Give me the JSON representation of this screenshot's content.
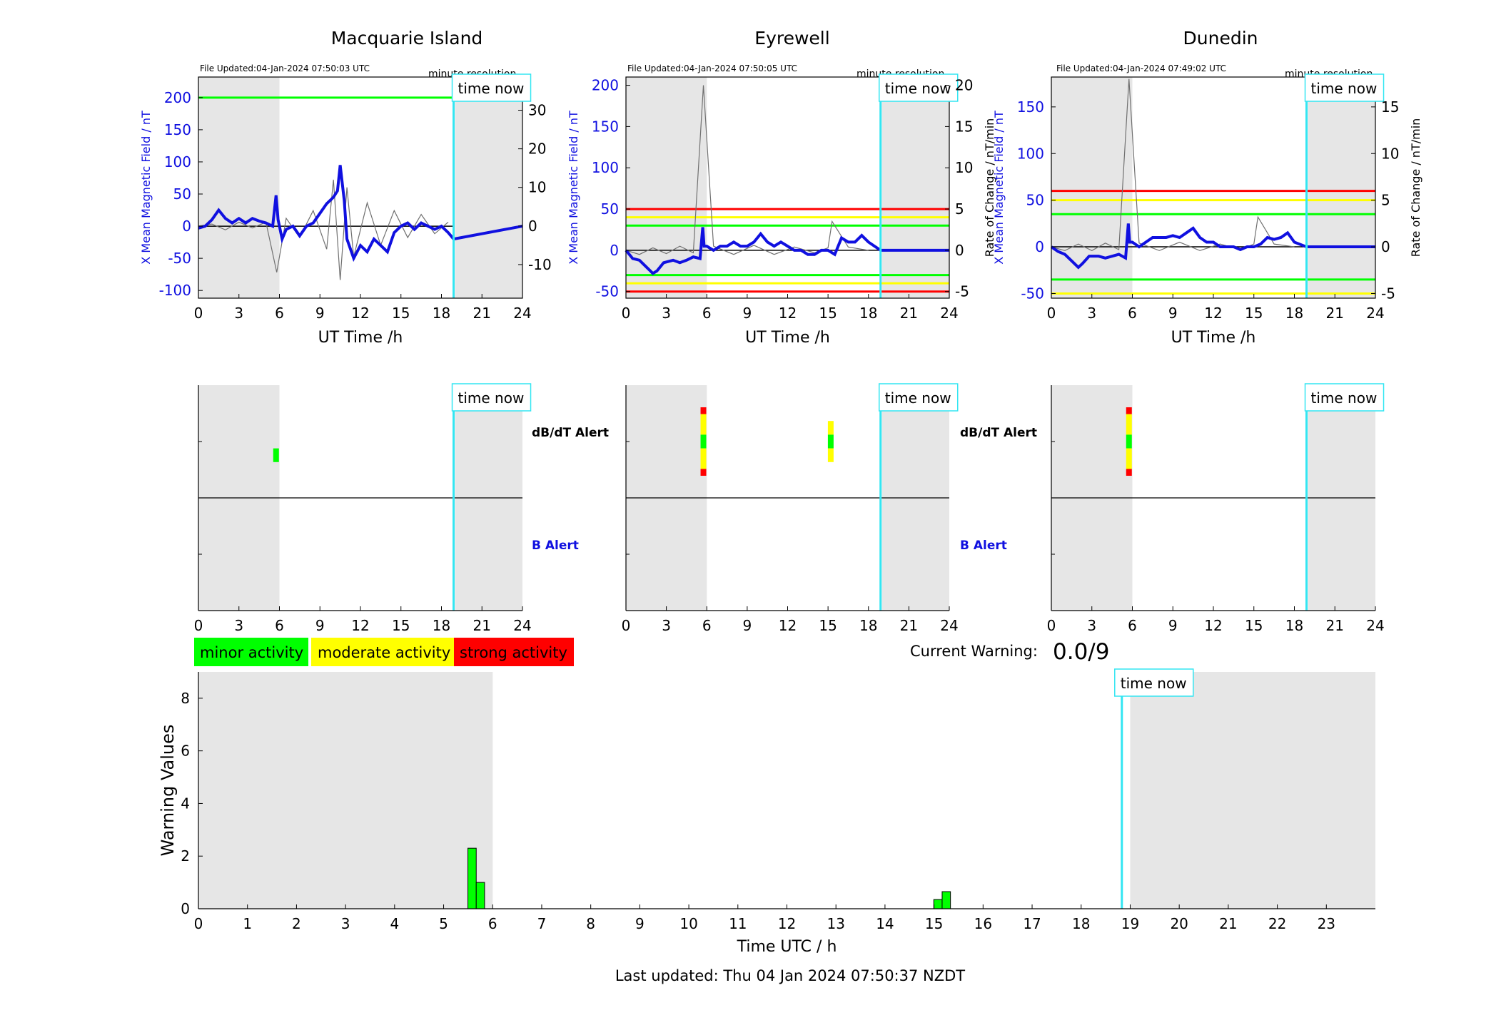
{
  "colors": {
    "night_shade": "#e6e6e6",
    "field_trace": "#1010e0",
    "rate_trace": "#707070",
    "time_now": "#33e6f2",
    "minor": "#00ff00",
    "moderate": "#ffff00",
    "strong": "#ff0000",
    "b_alert_label": "#1010e0",
    "axis": "#000000"
  },
  "panels": [
    {
      "title": "Macquarie Island",
      "file_updated": "File Updated:04-Jan-2024 07:50:03 UTC",
      "resolution": "minute resolution",
      "time_now_label": "time now"
    },
    {
      "title": "Eyrewell",
      "file_updated": "File Updated:04-Jan-2024 07:50:05 UTC",
      "resolution": "minute resolution",
      "time_now_label": "time now"
    },
    {
      "title": "Dunedin",
      "file_updated": "File Updated:04-Jan-2024 07:49:02 UTC",
      "resolution": "minute resolution",
      "time_now_label": "time now"
    }
  ],
  "alert_labels": {
    "dbdt": "dB/dT Alert",
    "b": "B Alert"
  },
  "legend": {
    "minor": "minor activity",
    "moderate": "moderate activity",
    "strong": "strong activity"
  },
  "current_warning": {
    "label": "Current Warning:",
    "value": "0.0/9"
  },
  "footer": "Last updated: Thu 04 Jan 2024 07:50:37 NZDT",
  "chart_data": [
    {
      "type": "line",
      "station": "Macquarie Island",
      "xlabel": "UT Time /h",
      "ylabel_left": "X Mean Magnetic Field / nT",
      "ylabel_right": "",
      "x_ticks": [
        0,
        3,
        6,
        9,
        12,
        15,
        18,
        21,
        24
      ],
      "y_ticks_left": [
        -100,
        -50,
        0,
        50,
        100,
        150,
        200
      ],
      "y_ticks_right": [
        -10,
        0,
        10,
        20,
        30
      ],
      "xlim": [
        0,
        24
      ],
      "ylim_left": [
        -112,
        232
      ],
      "ylim_right": [
        -18.7,
        38.6
      ],
      "night_shade_h": [
        [
          0,
          6
        ],
        [
          19,
          24
        ]
      ],
      "time_now_h": 18.9,
      "threshold_lines": [
        {
          "level": 200,
          "color": "#00ff00"
        }
      ],
      "series": [
        {
          "name": "X Mean Magnetic Field",
          "axis": "left",
          "x": [
            0,
            0.5,
            1,
            1.5,
            2,
            2.5,
            3,
            3.5,
            4,
            4.5,
            5,
            5.5,
            5.75,
            5.9,
            6.2,
            6.5,
            7,
            7.5,
            8,
            8.5,
            9,
            9.5,
            10,
            10.3,
            10.5,
            10.8,
            11,
            11.5,
            12,
            12.5,
            13,
            13.5,
            14,
            14.5,
            15,
            15.5,
            16,
            16.5,
            17,
            17.5,
            18,
            18.5,
            18.9,
            24
          ],
          "y": [
            -3,
            0,
            10,
            25,
            12,
            5,
            12,
            5,
            12,
            8,
            5,
            0,
            48,
            10,
            -20,
            -5,
            0,
            -15,
            0,
            5,
            20,
            35,
            45,
            55,
            95,
            40,
            -20,
            -50,
            -30,
            -40,
            -20,
            -30,
            -40,
            -10,
            0,
            5,
            -5,
            5,
            0,
            -5,
            0,
            -10,
            -20,
            0
          ]
        },
        {
          "name": "Rate of Change",
          "axis": "right",
          "x": [
            0,
            1,
            2,
            3,
            4,
            5,
            5.8,
            6.5,
            7.5,
            8.5,
            9.5,
            10,
            10.5,
            11,
            11.5,
            12.5,
            13.5,
            14.5,
            15.5,
            16.5,
            17.5,
            18.5
          ],
          "y": [
            0,
            0.5,
            -1,
            1,
            -0.5,
            1,
            -12,
            2,
            -3,
            4,
            -6,
            12,
            -14,
            10,
            -8,
            6,
            -5,
            4,
            -3,
            3,
            -2,
            1
          ]
        }
      ]
    },
    {
      "type": "line",
      "station": "Eyrewell",
      "xlabel": "UT Time /h",
      "ylabel_left": "X Mean Magnetic Field / nT",
      "ylabel_right": "Rate of Change / nT/min",
      "x_ticks": [
        0,
        3,
        6,
        9,
        12,
        15,
        18,
        21,
        24
      ],
      "y_ticks_left": [
        -50,
        0,
        50,
        100,
        150,
        200
      ],
      "y_ticks_right": [
        -5,
        0,
        5,
        10,
        15,
        20
      ],
      "xlim": [
        0,
        24
      ],
      "ylim_left": [
        -58,
        210
      ],
      "ylim_right": [
        -5.8,
        21
      ],
      "night_shade_h": [
        [
          0,
          6
        ],
        [
          19,
          24
        ]
      ],
      "time_now_h": 18.9,
      "threshold_lines": [
        {
          "level": 50,
          "color": "#ff0000"
        },
        {
          "level": 40,
          "color": "#ffff00"
        },
        {
          "level": 30,
          "color": "#00ff00"
        },
        {
          "level": -30,
          "color": "#00ff00"
        },
        {
          "level": -40,
          "color": "#ffff00"
        },
        {
          "level": -50,
          "color": "#ff0000"
        }
      ],
      "series": [
        {
          "name": "X Mean Magnetic Field",
          "axis": "left",
          "x": [
            0,
            0.5,
            1,
            1.5,
            2,
            2.3,
            2.8,
            3.5,
            4,
            4.5,
            5,
            5.5,
            5.7,
            5.8,
            6,
            6.5,
            7,
            7.5,
            8,
            8.5,
            9,
            9.5,
            10,
            10.5,
            11,
            11.5,
            12,
            12.5,
            13,
            13.5,
            14,
            14.5,
            15,
            15.5,
            16,
            16.5,
            17,
            17.5,
            18,
            18.9,
            24
          ],
          "y": [
            0,
            -10,
            -12,
            -20,
            -28,
            -25,
            -15,
            -12,
            -15,
            -12,
            -8,
            -10,
            28,
            5,
            5,
            0,
            5,
            5,
            10,
            5,
            5,
            10,
            20,
            10,
            5,
            10,
            5,
            0,
            0,
            -5,
            -5,
            0,
            0,
            -5,
            15,
            10,
            10,
            18,
            10,
            0,
            0
          ]
        },
        {
          "name": "Rate of Change",
          "axis": "right",
          "x": [
            0,
            1,
            2,
            3,
            4,
            5,
            5.75,
            6.5,
            8,
            9.5,
            11,
            12.5,
            14,
            15,
            15.3,
            16.5,
            18
          ],
          "y": [
            0,
            -0.5,
            0.3,
            -0.4,
            0.5,
            -0.3,
            20,
            0.5,
            -0.5,
            0.6,
            -0.5,
            0.4,
            -0.3,
            0.3,
            3.5,
            0.4,
            0
          ]
        }
      ]
    },
    {
      "type": "line",
      "station": "Dunedin",
      "xlabel": "UT Time /h",
      "ylabel_left": "X Mean Magnetic Field / nT",
      "ylabel_right": "Rate of Change / nT/min",
      "x_ticks": [
        0,
        3,
        6,
        9,
        12,
        15,
        18,
        21,
        24
      ],
      "y_ticks_left": [
        -50,
        0,
        50,
        100,
        150
      ],
      "y_ticks_right": [
        -5,
        0,
        5,
        10,
        15
      ],
      "xlim": [
        0,
        24
      ],
      "ylim_left": [
        -55,
        182
      ],
      "ylim_right": [
        -5.5,
        18.2
      ],
      "night_shade_h": [
        [
          0,
          6
        ],
        [
          19,
          24
        ]
      ],
      "time_now_h": 18.9,
      "threshold_lines": [
        {
          "level": 60,
          "color": "#ff0000"
        },
        {
          "level": 50,
          "color": "#ffff00"
        },
        {
          "level": 35,
          "color": "#00ff00"
        },
        {
          "level": -35,
          "color": "#00ff00"
        },
        {
          "level": -50,
          "color": "#ffff00"
        }
      ],
      "series": [
        {
          "name": "X Mean Magnetic Field",
          "axis": "left",
          "x": [
            0,
            0.5,
            1,
            1.5,
            2,
            2.3,
            2.8,
            3.5,
            4,
            4.5,
            5,
            5.5,
            5.7,
            5.8,
            6,
            6.5,
            7,
            7.5,
            8,
            8.5,
            9,
            9.5,
            10,
            10.5,
            11,
            11.5,
            12,
            12.5,
            13,
            13.5,
            14,
            14.5,
            15,
            15.5,
            16,
            16.5,
            17,
            17.5,
            18,
            18.9,
            24
          ],
          "y": [
            0,
            -5,
            -8,
            -15,
            -22,
            -18,
            -10,
            -10,
            -12,
            -10,
            -8,
            -12,
            25,
            5,
            5,
            0,
            5,
            10,
            10,
            10,
            12,
            10,
            15,
            20,
            10,
            5,
            5,
            0,
            0,
            0,
            -3,
            0,
            0,
            3,
            10,
            8,
            10,
            15,
            5,
            0,
            0
          ]
        },
        {
          "name": "Rate of Change",
          "axis": "right",
          "x": [
            0,
            1,
            2,
            3,
            4,
            5,
            5.75,
            6.5,
            8,
            9.5,
            11,
            12.5,
            14,
            15,
            15.3,
            16.5,
            18
          ],
          "y": [
            0,
            -0.4,
            0.3,
            -0.4,
            0.4,
            -0.3,
            18,
            0.4,
            -0.4,
            0.5,
            -0.4,
            0.3,
            -0.3,
            0.3,
            3.2,
            0.3,
            0
          ]
        }
      ]
    },
    {
      "type": "bar",
      "title": "",
      "xlabel": "Time UTC / h",
      "ylabel": "Warning Values",
      "xlim": [
        0,
        24
      ],
      "ylim": [
        0,
        9
      ],
      "x_ticks": [
        0,
        1,
        2,
        3,
        4,
        5,
        6,
        7,
        8,
        9,
        10,
        11,
        12,
        13,
        14,
        15,
        16,
        17,
        18,
        19,
        20,
        21,
        22,
        23
      ],
      "y_ticks": [
        0,
        2,
        4,
        6,
        8
      ],
      "night_shade_h": [
        [
          0,
          6
        ],
        [
          19,
          24
        ]
      ],
      "time_now_h": 18.83,
      "time_now_label": "time now",
      "bar_width_h": 0.17,
      "x": [
        5.58,
        5.75,
        15.08,
        15.25
      ],
      "values": [
        2.3,
        1.0,
        0.35,
        0.65
      ]
    }
  ],
  "alert_data": [
    {
      "station": "Macquarie Island",
      "dbdt_bars": [
        {
          "x": 5.75,
          "segments": [
            {
              "color": "#00ff00",
              "from": 0.6,
              "to": 0.8
            }
          ]
        }
      ],
      "b_bars": []
    },
    {
      "station": "Eyrewell",
      "dbdt_bars": [
        {
          "x": 5.75,
          "segments": [
            {
              "color": "#ff0000",
              "from": 0.0,
              "to": 0.1
            },
            {
              "color": "#ffff00",
              "from": 0.1,
              "to": 0.4
            },
            {
              "color": "#00ff00",
              "from": 0.4,
              "to": 0.6
            },
            {
              "color": "#ffff00",
              "from": 0.6,
              "to": 0.9
            },
            {
              "color": "#ff0000",
              "from": 0.9,
              "to": 1.0
            }
          ]
        },
        {
          "x": 15.2,
          "segments": [
            {
              "color": "#ffff00",
              "from": 0.2,
              "to": 0.4
            },
            {
              "color": "#00ff00",
              "from": 0.4,
              "to": 0.6
            },
            {
              "color": "#ffff00",
              "from": 0.6,
              "to": 0.8
            }
          ]
        }
      ],
      "b_bars": []
    },
    {
      "station": "Dunedin",
      "dbdt_bars": [
        {
          "x": 5.75,
          "segments": [
            {
              "color": "#ff0000",
              "from": 0.0,
              "to": 0.1
            },
            {
              "color": "#ffff00",
              "from": 0.1,
              "to": 0.4
            },
            {
              "color": "#00ff00",
              "from": 0.4,
              "to": 0.6
            },
            {
              "color": "#ffff00",
              "from": 0.6,
              "to": 0.9
            },
            {
              "color": "#ff0000",
              "from": 0.9,
              "to": 1.0
            }
          ]
        }
      ],
      "b_bars": []
    }
  ]
}
